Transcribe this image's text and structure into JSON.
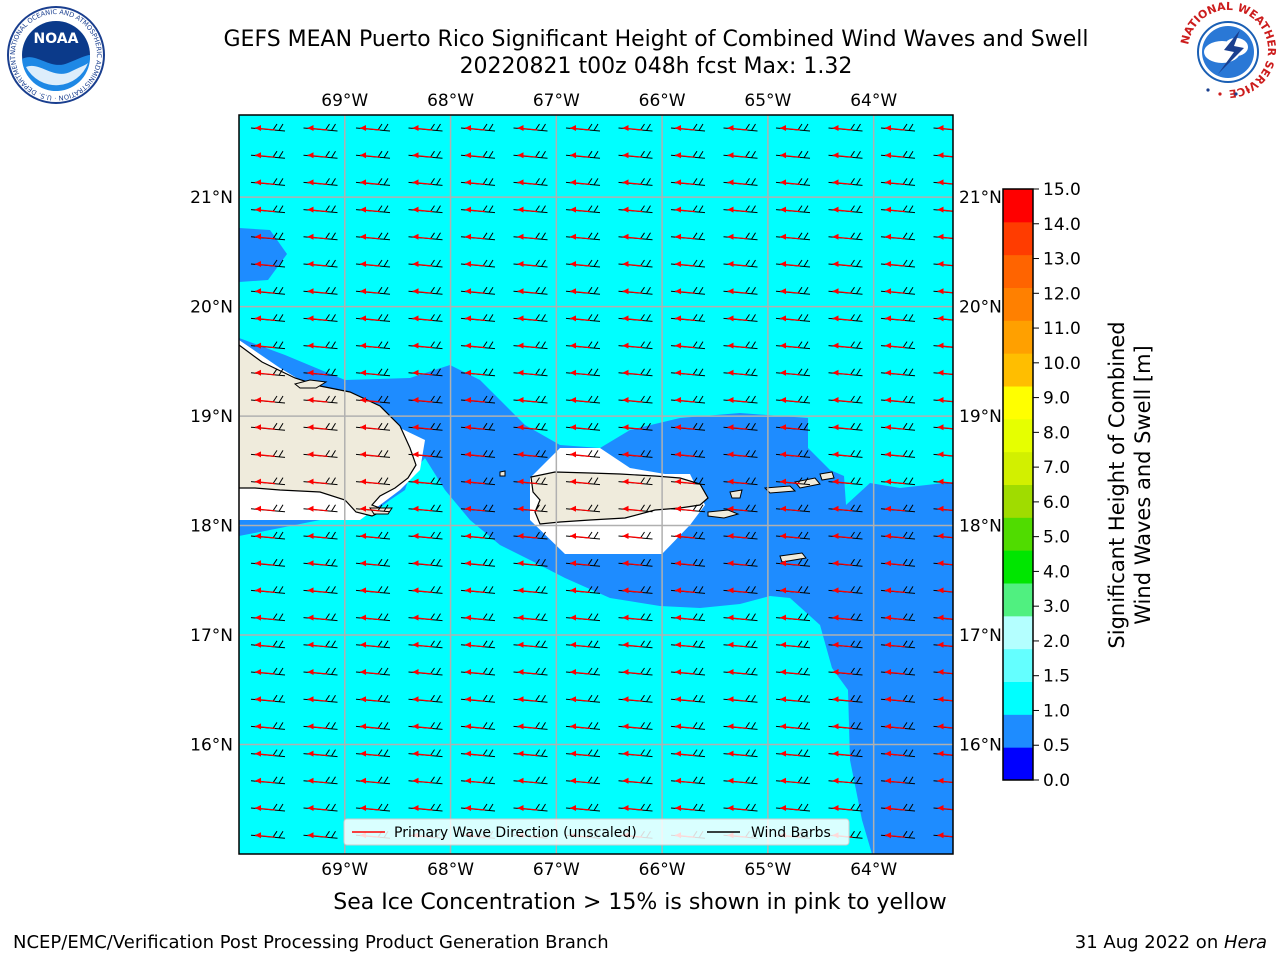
{
  "header": {
    "title_line1": "GEFS MEAN Puerto Rico Significant Height of Combined Wind Waves and Swell",
    "title_line2": "20220821 t00z 048h fcst   Max: 1.32"
  },
  "logos": {
    "left": {
      "name": "noaa-logo",
      "text": "NOAA",
      "ring_text": "NATIONAL OCEANIC AND ATMOSPHERIC ADMINISTRATION · U.S. DEPARTMENT OF COMMERCE"
    },
    "right": {
      "name": "nws-logo",
      "ring_text": "NATIONAL WEATHER SERVICE"
    }
  },
  "map": {
    "lon_labels": [
      "69°W",
      "68°W",
      "67°W",
      "66°W",
      "65°W",
      "64°W"
    ],
    "lat_labels": [
      "21°N",
      "20°N",
      "19°N",
      "18°N",
      "17°N",
      "16°N"
    ],
    "lon_range": [
      -70.0,
      -63.25
    ],
    "lat_range": [
      15.0,
      21.75
    ],
    "legend": {
      "primary_wave_label": "Primary Wave Direction (unscaled)",
      "wind_barbs_label": "Wind Barbs"
    },
    "colors": {
      "land": "#efebdc",
      "wave_arrow": "#ff0000",
      "wind_barb": "#000000",
      "level_1_0_1_5": "#00ffff",
      "level_0_5_1_0": "#1e8cff"
    }
  },
  "colorbar": {
    "label_line1": "Significant Height of Combined",
    "label_line2": "Wind Waves and Swell [m]",
    "ticks": [
      "15.0",
      "14.0",
      "13.0",
      "12.0",
      "11.0",
      "10.0",
      "9.0",
      "8.0",
      "7.0",
      "6.0",
      "5.0",
      "4.0",
      "3.0",
      "2.0",
      "1.5",
      "1.0",
      "0.5",
      "0.0"
    ],
    "colors_bottom_to_top": [
      "#0000ff",
      "#1e8cff",
      "#00ffff",
      "#64ffff",
      "#b4ffff",
      "#50f080",
      "#00e600",
      "#50dc00",
      "#a0dc00",
      "#d2f000",
      "#e6ff00",
      "#ffff00",
      "#ffbe00",
      "#ffa000",
      "#ff8000",
      "#ff6400",
      "#ff3c00",
      "#ff0000"
    ]
  },
  "footer": {
    "sea_ice_note": "Sea Ice Concentration > 15% is shown in pink to yellow",
    "left": "NCEP/EMC/Verification Post Processing Product Generation Branch",
    "right_date": "31 Aug 2022 on ",
    "right_machine": "Hera"
  }
}
